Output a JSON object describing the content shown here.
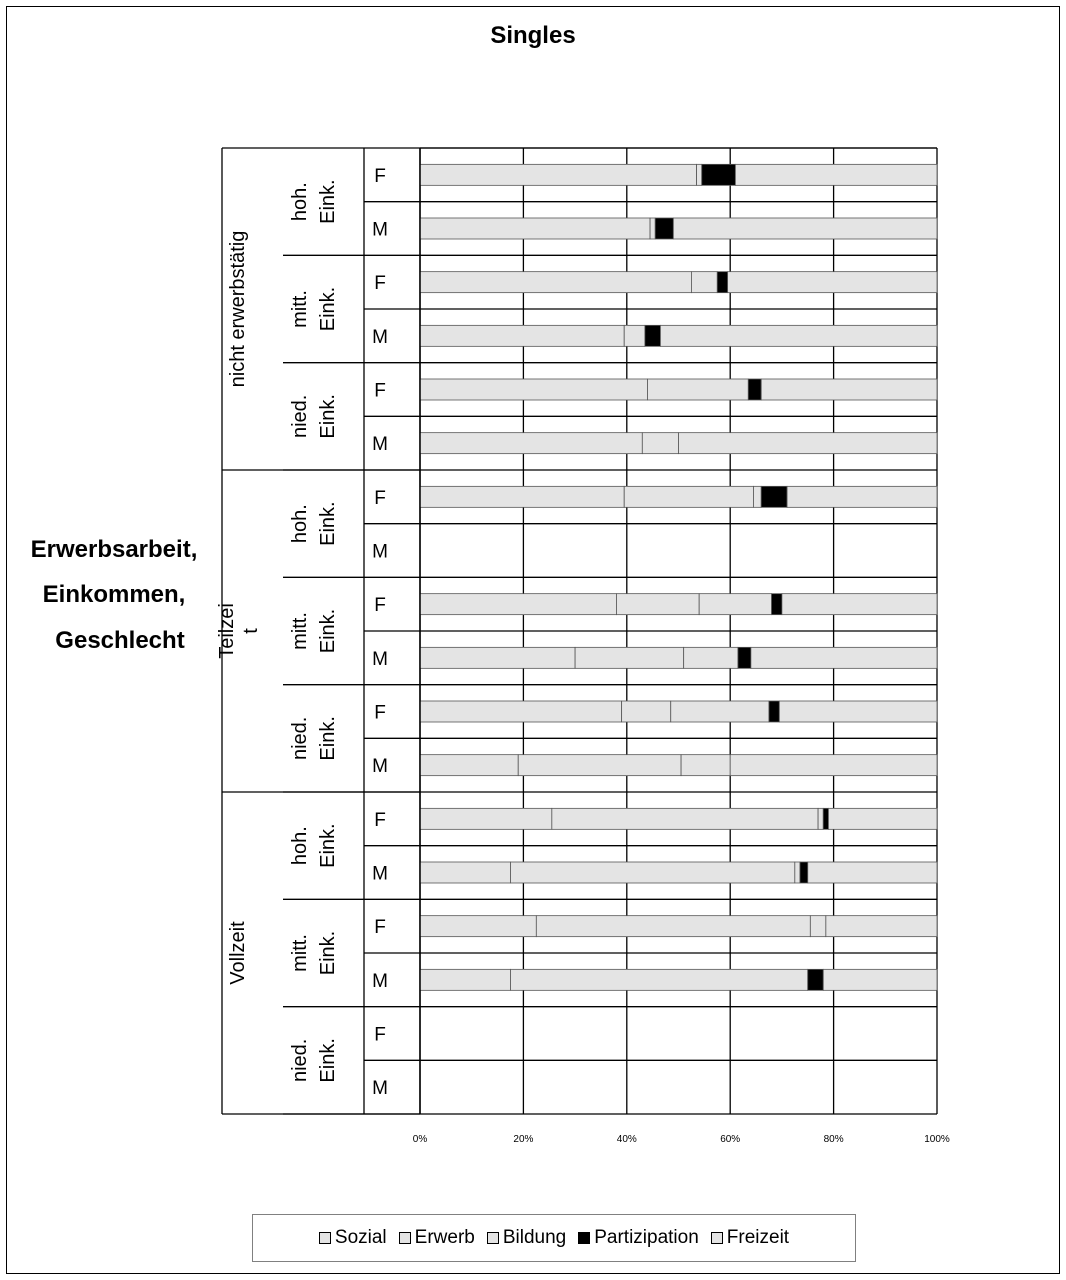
{
  "title": "Singles",
  "colors": {
    "Sozial": "#e4e4e4",
    "Erwerb": "#e4e4e4",
    "Bildung": "#e4e4e4",
    "Partizipation": "#000000",
    "Freizeit": "#e4e4e4"
  },
  "legend": [
    "Sozial",
    "Erwerb",
    "Bildung",
    "Partizipation",
    "Freizeit"
  ],
  "chart_data": {
    "type": "bar",
    "orientation": "horizontal",
    "stacked": "percent",
    "title": "Singles",
    "ylabel": [
      "Erwerbsarbeit,",
      "Einkommen,",
      "Geschlecht"
    ],
    "xlim": [
      0,
      100
    ],
    "xticks": [
      "0%",
      "20%",
      "40%",
      "60%",
      "80%",
      "100%"
    ],
    "grid": true,
    "legend_position": "bottom",
    "groups": [
      {
        "label": "nicht erwerbstätig",
        "subgroups": [
          {
            "label": [
              "hoh.",
              "Eink."
            ],
            "categories": [
              "F",
              "M"
            ]
          },
          {
            "label": [
              "mitt.",
              "Eink."
            ],
            "categories": [
              "F",
              "M"
            ]
          },
          {
            "label": [
              "nied.",
              "Eink."
            ],
            "categories": [
              "F",
              "M"
            ]
          }
        ]
      },
      {
        "label": [
          "Teilzei",
          "t"
        ],
        "subgroups": [
          {
            "label": [
              "hoh.",
              "Eink."
            ],
            "categories": [
              "F",
              "M"
            ]
          },
          {
            "label": [
              "mitt.",
              "Eink."
            ],
            "categories": [
              "F",
              "M"
            ]
          },
          {
            "label": [
              "nied.",
              "Eink."
            ],
            "categories": [
              "F",
              "M"
            ]
          }
        ]
      },
      {
        "label": "Vollzeit",
        "subgroups": [
          {
            "label": [
              "hoh.",
              "Eink."
            ],
            "categories": [
              "F",
              "M"
            ]
          },
          {
            "label": [
              "mitt.",
              "Eink."
            ],
            "categories": [
              "F",
              "M"
            ]
          },
          {
            "label": [
              "nied.",
              "Eink."
            ],
            "categories": [
              "F",
              "M"
            ]
          }
        ]
      }
    ],
    "series_names": [
      "Sozial",
      "Erwerb",
      "Bildung",
      "Partizipation",
      "Freizeit"
    ],
    "rows": [
      {
        "group": "nicht erwerbstätig",
        "income": "hoh. Eink.",
        "sex": "F",
        "values": [
          53.5,
          0,
          1,
          6.5,
          39
        ]
      },
      {
        "group": "nicht erwerbstätig",
        "income": "hoh. Eink.",
        "sex": "M",
        "values": [
          44.5,
          0,
          1,
          3.5,
          51
        ]
      },
      {
        "group": "nicht erwerbstätig",
        "income": "mitt. Eink.",
        "sex": "F",
        "values": [
          52.5,
          0,
          5,
          2,
          40.5
        ]
      },
      {
        "group": "nicht erwerbstätig",
        "income": "mitt. Eink.",
        "sex": "M",
        "values": [
          39.5,
          0,
          4,
          3,
          53.5
        ]
      },
      {
        "group": "nicht erwerbstätig",
        "income": "nied. Eink.",
        "sex": "F",
        "values": [
          44,
          0,
          19.5,
          2.5,
          34
        ]
      },
      {
        "group": "nicht erwerbstätig",
        "income": "nied. Eink.",
        "sex": "M",
        "values": [
          43,
          0,
          7,
          0,
          50
        ]
      },
      {
        "group": "Teilzeit",
        "income": "hoh. Eink.",
        "sex": "F",
        "values": [
          39.5,
          25,
          1.5,
          5,
          29
        ]
      },
      {
        "group": "Teilzeit",
        "income": "hoh. Eink.",
        "sex": "M",
        "values": null
      },
      {
        "group": "Teilzeit",
        "income": "mitt. Eink.",
        "sex": "F",
        "values": [
          38,
          16,
          14,
          2,
          30
        ]
      },
      {
        "group": "Teilzeit",
        "income": "mitt. Eink.",
        "sex": "M",
        "values": [
          30,
          21,
          10.5,
          2.5,
          36
        ]
      },
      {
        "group": "Teilzeit",
        "income": "nied. Eink.",
        "sex": "F",
        "values": [
          39,
          9.5,
          19,
          2,
          30.5
        ]
      },
      {
        "group": "Teilzeit",
        "income": "nied. Eink.",
        "sex": "M",
        "values": [
          19,
          31.5,
          9.5,
          0,
          40
        ]
      },
      {
        "group": "Vollzeit",
        "income": "hoh. Eink.",
        "sex": "F",
        "values": [
          25.5,
          51.5,
          1,
          1,
          21
        ]
      },
      {
        "group": "Vollzeit",
        "income": "hoh. Eink.",
        "sex": "M",
        "values": [
          17.5,
          55,
          1,
          1.5,
          25
        ]
      },
      {
        "group": "Vollzeit",
        "income": "mitt. Eink.",
        "sex": "F",
        "values": [
          22.5,
          53,
          3,
          0,
          21.5
        ]
      },
      {
        "group": "Vollzeit",
        "income": "mitt. Eink.",
        "sex": "M",
        "values": [
          17.5,
          57.5,
          0,
          3,
          22
        ]
      },
      {
        "group": "Vollzeit",
        "income": "nied. Eink.",
        "sex": "F",
        "values": null
      },
      {
        "group": "Vollzeit",
        "income": "nied. Eink.",
        "sex": "M",
        "values": null
      }
    ]
  }
}
